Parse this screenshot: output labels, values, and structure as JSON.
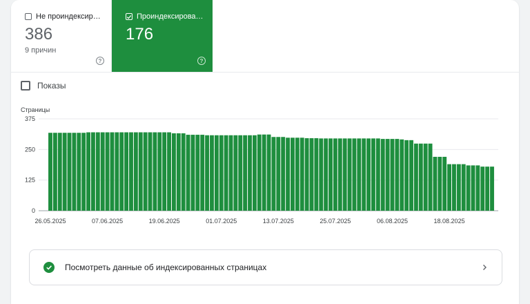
{
  "tiles": {
    "unindexed": {
      "label": "Не проиндексир…",
      "value": "386",
      "sub": "9 причин",
      "checked": false
    },
    "indexed": {
      "label": "Проиндексирова…",
      "value": "176",
      "checked": true
    },
    "help": "?"
  },
  "impressions_label": "Показы",
  "chart_data": {
    "type": "bar",
    "ylabel": "Страницы",
    "ylim": [
      0,
      375
    ],
    "yticks": [
      "0",
      "125",
      "250",
      "375"
    ],
    "xtick_labels": [
      "26.05.2025",
      "07.06.2025",
      "19.06.2025",
      "01.07.2025",
      "13.07.2025",
      "25.07.2025",
      "06.08.2025",
      "18.08.2025"
    ],
    "xtick_positions": [
      0,
      12,
      24,
      36,
      48,
      60,
      72,
      84
    ],
    "values": [
      318,
      318,
      318,
      318,
      318,
      318,
      318,
      318,
      320,
      320,
      320,
      320,
      320,
      320,
      320,
      320,
      320,
      320,
      320,
      320,
      320,
      320,
      320,
      320,
      320,
      320,
      316,
      316,
      316,
      310,
      310,
      310,
      310,
      308,
      308,
      308,
      308,
      308,
      308,
      308,
      308,
      308,
      308,
      308,
      311,
      311,
      311,
      301,
      301,
      301,
      298,
      298,
      298,
      298,
      296,
      296,
      296,
      295,
      295,
      295,
      295,
      295,
      295,
      295,
      295,
      295,
      295,
      295,
      295,
      295,
      293,
      293,
      293,
      293,
      291,
      288,
      288,
      274,
      274,
      274,
      274,
      220,
      220,
      220,
      190,
      190,
      190,
      190,
      185,
      185,
      185,
      180,
      180,
      180
    ],
    "color": "#1e8e3e"
  },
  "action": {
    "label": "Посмотреть данные об индексированных страницах"
  }
}
